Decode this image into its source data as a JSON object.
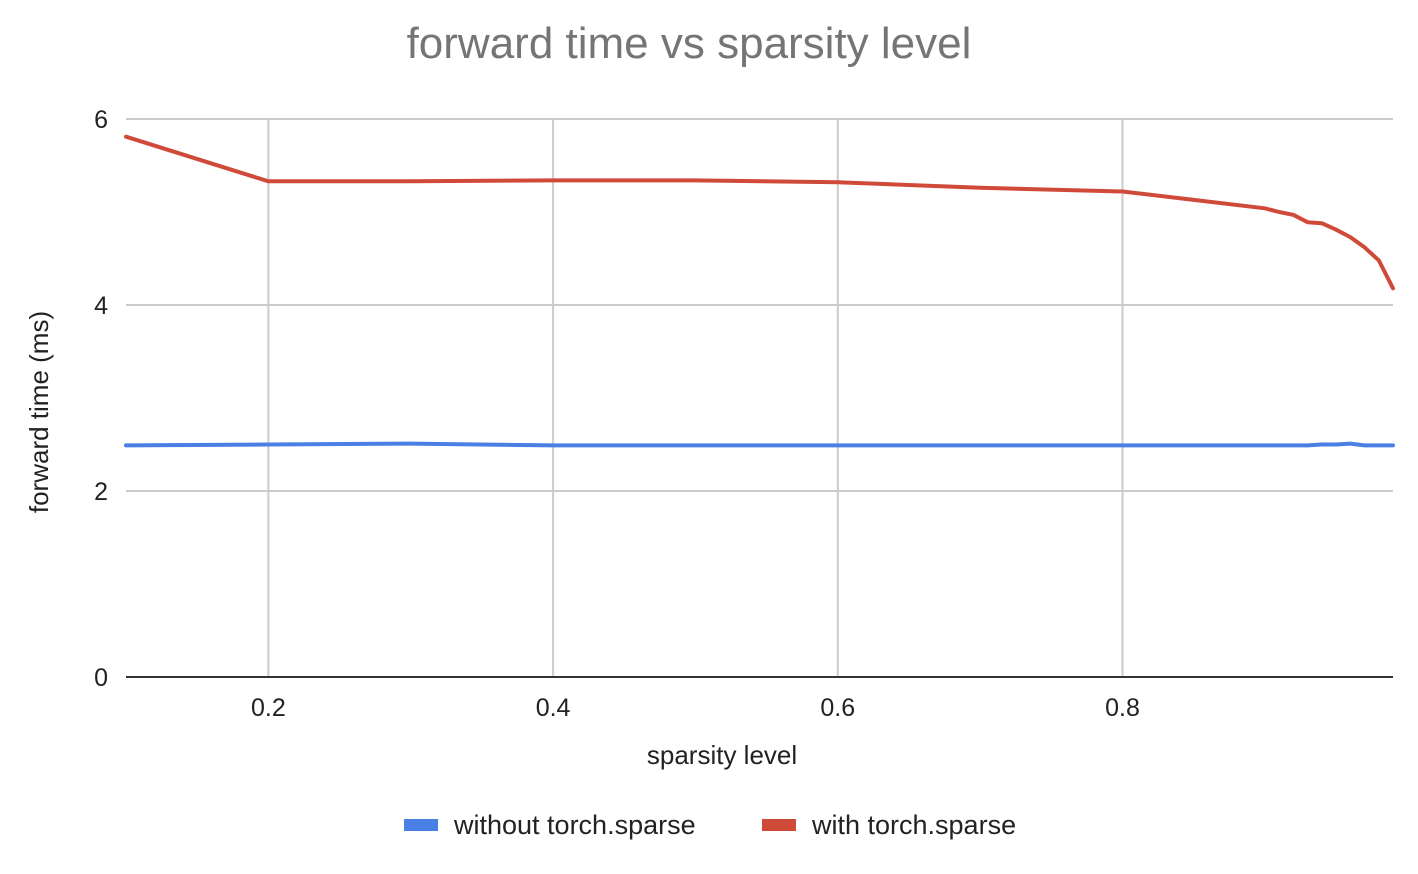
{
  "chart_data": {
    "type": "line",
    "title": "forward time vs sparsity level",
    "xlabel": "sparsity level",
    "ylabel": "forward time (ms)",
    "xlim": [
      0.1,
      0.99
    ],
    "ylim": [
      0,
      6
    ],
    "x_ticks": [
      "0.2",
      "0.4",
      "0.6",
      "0.8"
    ],
    "x_tick_values": [
      0.2,
      0.4,
      0.6,
      0.8
    ],
    "y_ticks": [
      "0",
      "2",
      "4",
      "6"
    ],
    "y_tick_values": [
      0,
      2,
      4,
      6
    ],
    "grid": true,
    "legend_position": "bottom",
    "series": [
      {
        "name": "without torch.sparse",
        "color": "#4a7fe6",
        "x": [
          0.1,
          0.2,
          0.3,
          0.4,
          0.5,
          0.6,
          0.7,
          0.8,
          0.85,
          0.9,
          0.91,
          0.92,
          0.93,
          0.94,
          0.95,
          0.96,
          0.97,
          0.98,
          0.99
        ],
        "y": [
          2.49,
          2.5,
          2.51,
          2.49,
          2.49,
          2.49,
          2.49,
          2.49,
          2.49,
          2.49,
          2.49,
          2.49,
          2.49,
          2.5,
          2.5,
          2.51,
          2.49,
          2.49,
          2.49
        ]
      },
      {
        "name": "with torch.sparse",
        "color": "#d04a3a",
        "x": [
          0.1,
          0.2,
          0.3,
          0.4,
          0.5,
          0.6,
          0.7,
          0.8,
          0.85,
          0.9,
          0.91,
          0.92,
          0.93,
          0.94,
          0.95,
          0.96,
          0.97,
          0.98,
          0.99
        ],
        "y": [
          5.81,
          5.33,
          5.33,
          5.34,
          5.34,
          5.32,
          5.26,
          5.22,
          5.13,
          5.04,
          5.0,
          4.97,
          4.89,
          4.88,
          4.81,
          4.73,
          4.62,
          4.48,
          4.18
        ]
      }
    ]
  }
}
